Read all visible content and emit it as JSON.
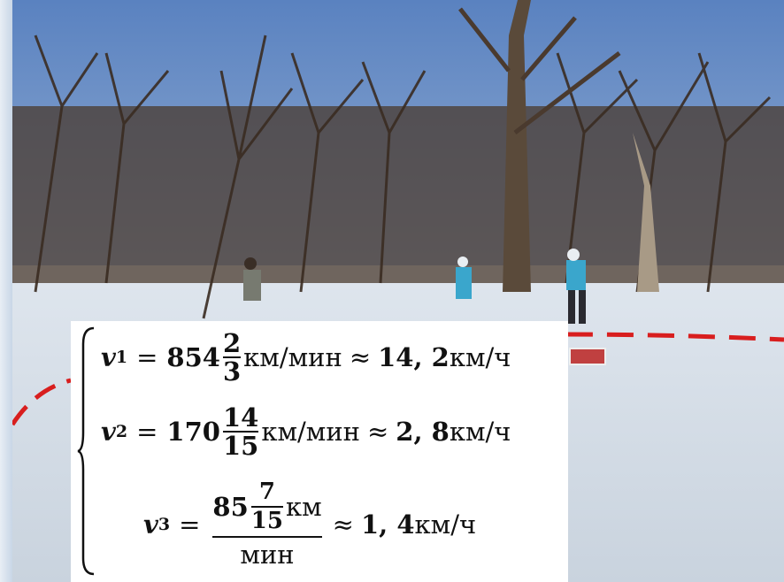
{
  "formulas": {
    "v1": {
      "var": "v",
      "sub": "1",
      "eq": "=",
      "whole": "854",
      "frac_num": "2",
      "frac_den": "3",
      "unit": "км/мин",
      "approx": "≈",
      "result": "14, 2",
      "result_unit": "км/ч"
    },
    "v2": {
      "var": "v",
      "sub": "2",
      "eq": "=",
      "whole": "170",
      "frac_num": "14",
      "frac_den": "15",
      "unit": "км/мин",
      "approx": "≈",
      "result": "2, 8",
      "result_unit": "км/ч"
    },
    "v3": {
      "var": "v",
      "sub": "3",
      "eq": "=",
      "whole": "85",
      "frac_num": "7",
      "frac_den": "15",
      "unit_top": "км",
      "unit_bottom": "мин",
      "approx": "≈",
      "result": "1, 4",
      "result_unit": "км/ч"
    }
  },
  "colors": {
    "dashed_path": "#d81e1e",
    "sky": "#4f79b8",
    "snow": "#e6ecf2"
  }
}
